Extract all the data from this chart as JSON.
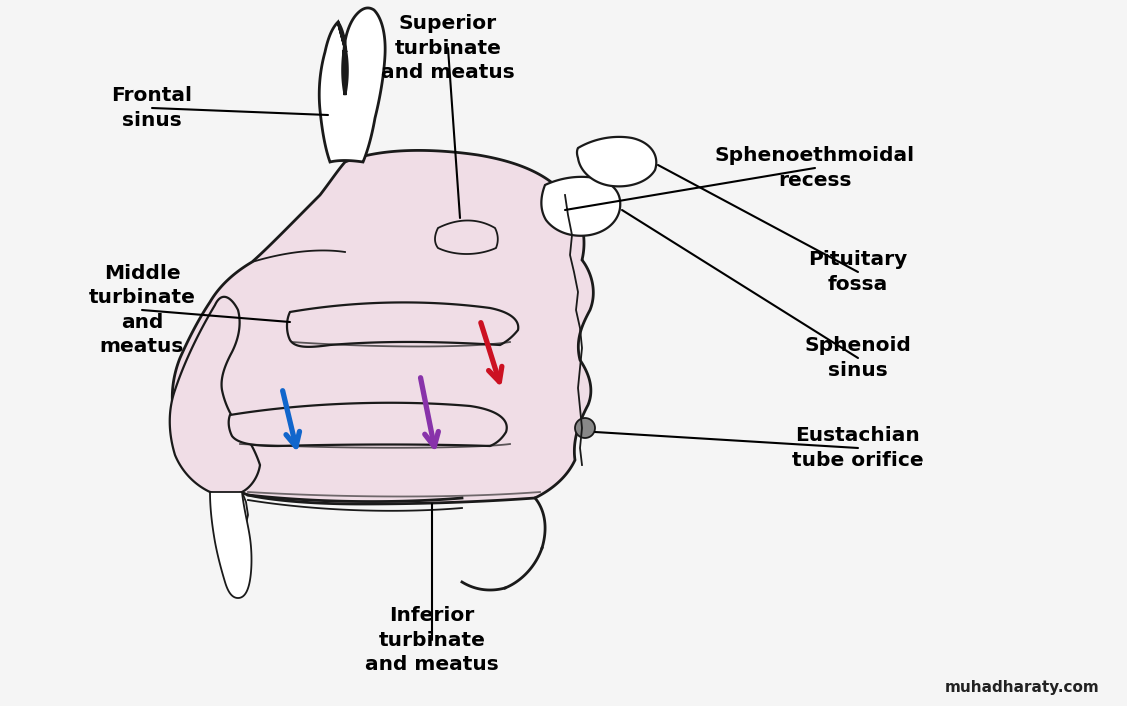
{
  "background_color": "#f5f5f5",
  "fill_color": "#f0dde6",
  "line_color": "#1a1a1a",
  "label_color": "#000000",
  "watermark": "muhadharaty.com",
  "watermark_color": "#222222",
  "labels": {
    "frontal_sinus": "Frontal\nsinus",
    "middle_turbinate": "Middle\nturbinate\nand\nmeatus",
    "superior_turbinate": "Superior\nturbinate\nand meatus",
    "sphenoethmoidal": "Sphenoethmoidal\nrecess",
    "pituitary_fossa": "Pituitary\nfossa",
    "sphenoid_sinus": "Sphenoid\nsinus",
    "eustachian": "Eustachian\ntube orifice",
    "inferior_turbinate": "Inferior\nturbinate\nand meatus"
  },
  "arrow_red_color": "#cc1122",
  "arrow_purple_color": "#8833aa",
  "arrow_blue_color": "#1166cc"
}
